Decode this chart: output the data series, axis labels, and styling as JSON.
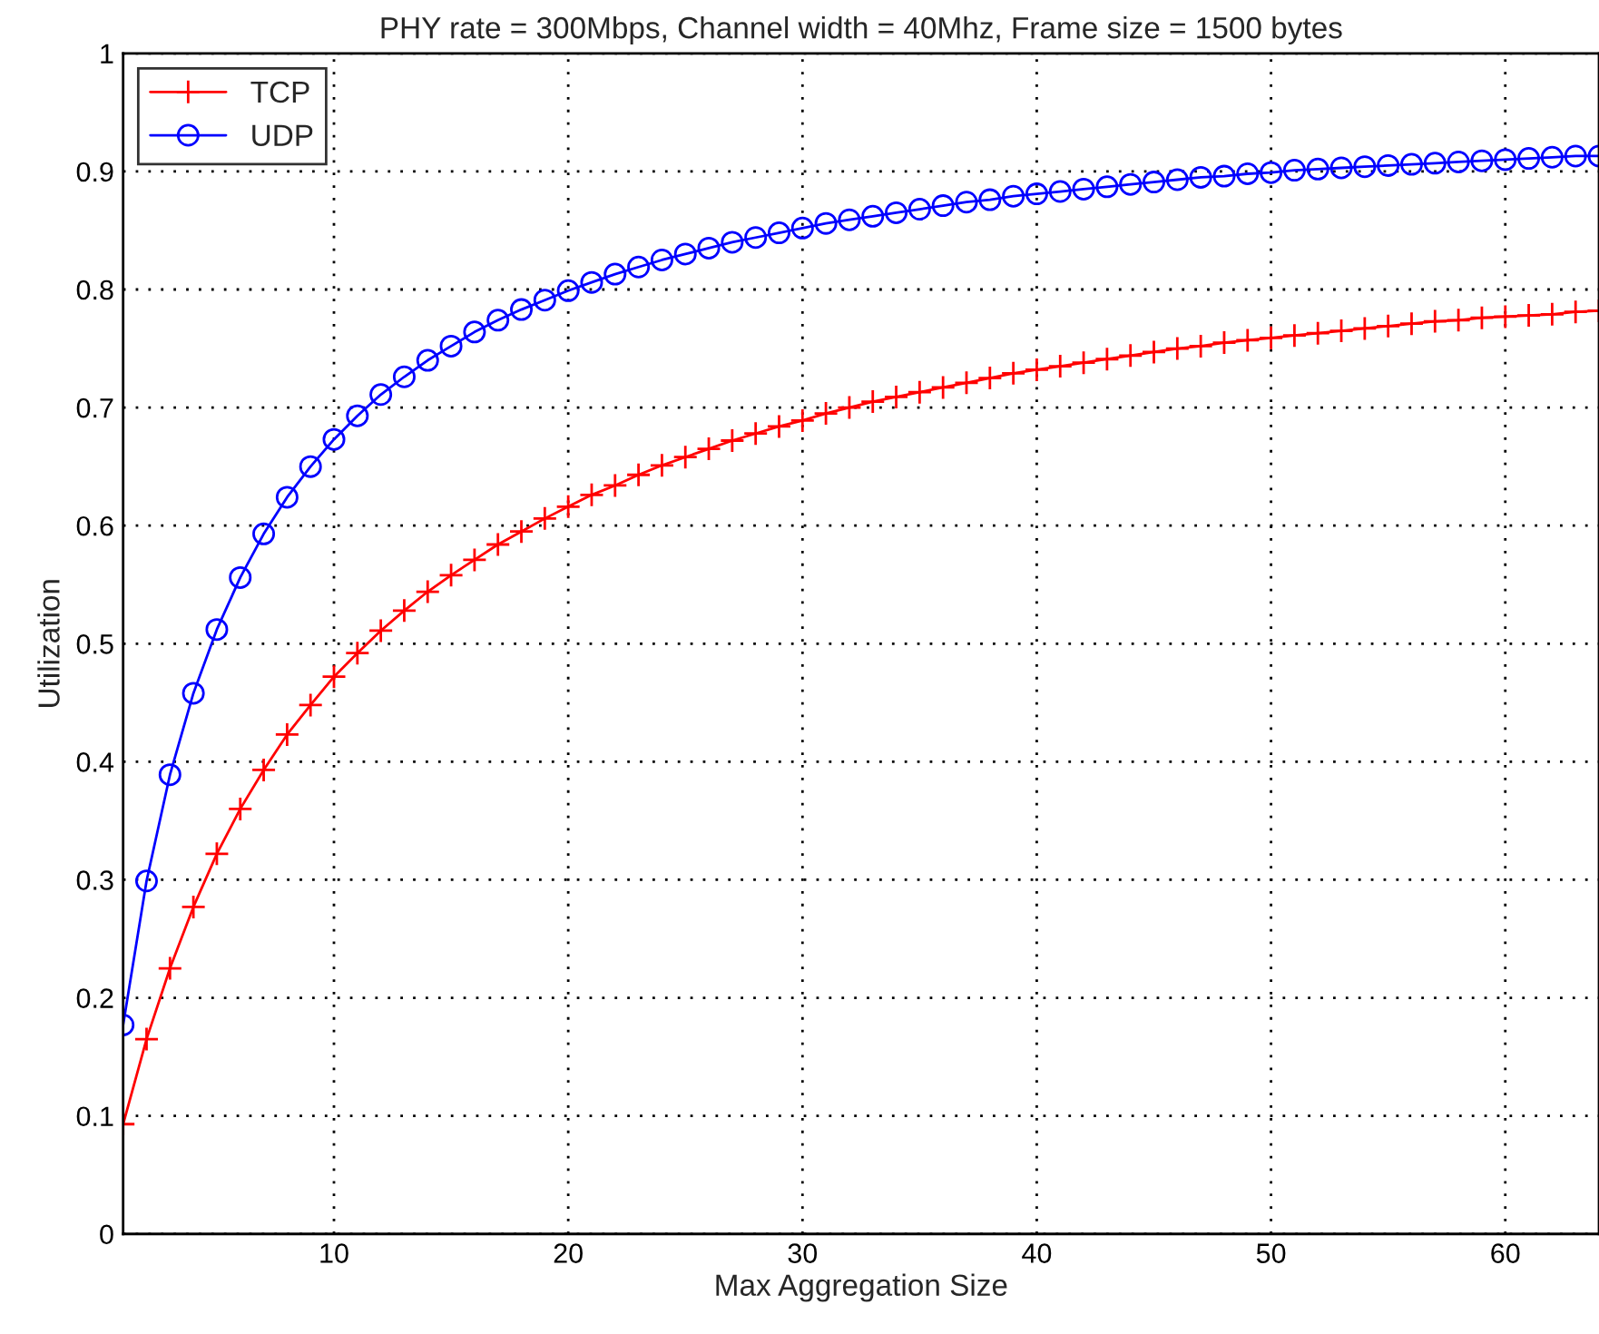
{
  "chart_data": {
    "type": "line",
    "title": "PHY rate = 300Mbps, Channel width = 40Mhz, Frame size = 1500 bytes",
    "xlabel": "Max Aggregation Size",
    "ylabel": "Utilization",
    "x": [
      1,
      2,
      3,
      4,
      5,
      6,
      7,
      8,
      9,
      10,
      11,
      12,
      13,
      14,
      15,
      16,
      17,
      18,
      19,
      20,
      21,
      22,
      23,
      24,
      25,
      26,
      27,
      28,
      29,
      30,
      31,
      32,
      33,
      34,
      35,
      36,
      37,
      38,
      39,
      40,
      41,
      42,
      43,
      44,
      45,
      46,
      47,
      48,
      49,
      50,
      51,
      52,
      53,
      54,
      55,
      56,
      57,
      58,
      59,
      60,
      61,
      62,
      63,
      64
    ],
    "series": [
      {
        "name": "TCP",
        "color": "#ff0000",
        "marker": "cross",
        "values": [
          0.093,
          0.165,
          0.225,
          0.277,
          0.322,
          0.36,
          0.393,
          0.423,
          0.448,
          0.472,
          0.492,
          0.511,
          0.528,
          0.544,
          0.558,
          0.571,
          0.584,
          0.595,
          0.606,
          0.616,
          0.626,
          0.634,
          0.643,
          0.651,
          0.658,
          0.665,
          0.672,
          0.678,
          0.684,
          0.689,
          0.695,
          0.7,
          0.705,
          0.709,
          0.713,
          0.717,
          0.721,
          0.725,
          0.729,
          0.732,
          0.735,
          0.738,
          0.741,
          0.744,
          0.747,
          0.75,
          0.752,
          0.755,
          0.757,
          0.759,
          0.761,
          0.763,
          0.765,
          0.767,
          0.769,
          0.771,
          0.773,
          0.774,
          0.776,
          0.777,
          0.778,
          0.779,
          0.781,
          0.782
        ]
      },
      {
        "name": "UDP",
        "color": "#0000ff",
        "marker": "circle",
        "values": [
          0.177,
          0.299,
          0.389,
          0.458,
          0.512,
          0.556,
          0.593,
          0.624,
          0.65,
          0.673,
          0.693,
          0.711,
          0.726,
          0.74,
          0.752,
          0.764,
          0.774,
          0.783,
          0.791,
          0.799,
          0.806,
          0.813,
          0.819,
          0.825,
          0.83,
          0.835,
          0.84,
          0.844,
          0.848,
          0.852,
          0.856,
          0.859,
          0.862,
          0.865,
          0.868,
          0.871,
          0.874,
          0.876,
          0.879,
          0.881,
          0.883,
          0.885,
          0.887,
          0.889,
          0.891,
          0.893,
          0.895,
          0.896,
          0.898,
          0.899,
          0.901,
          0.902,
          0.903,
          0.904,
          0.905,
          0.906,
          0.907,
          0.908,
          0.909,
          0.91,
          0.911,
          0.912,
          0.913,
          0.913
        ]
      }
    ],
    "xlim": [
      1,
      64
    ],
    "ylim": [
      0,
      1
    ],
    "xticks": [
      10,
      20,
      30,
      40,
      50,
      60
    ],
    "yticks": [
      0,
      0.1,
      0.2,
      0.3,
      0.4,
      0.5,
      0.6,
      0.7,
      0.8,
      0.9,
      1
    ],
    "grid": true,
    "legend": "top left",
    "line_style": "solid"
  }
}
